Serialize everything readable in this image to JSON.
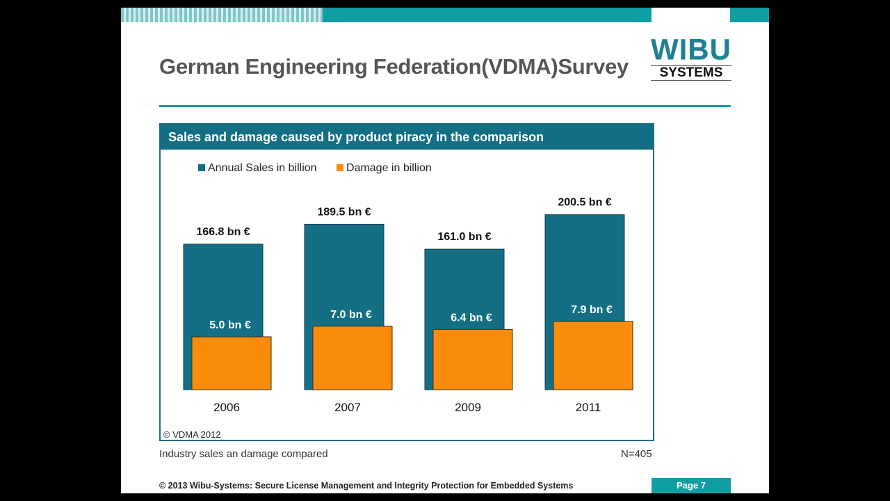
{
  "slide": {
    "title": "German Engineering Federation(VDMA)Survey",
    "logo_top": "WIBU",
    "logo_bottom": "SYSTEMS",
    "source_note": "Industry sales an damage compared",
    "n_label": "N=405",
    "footer": "© 2013 Wibu-Systems: Secure License Management and Integrity Protection for Embedded Systems",
    "page": "Page 7",
    "colors": {
      "teal": "#119ea3",
      "chart_blue": "#146f85",
      "orange": "#f98d0b"
    }
  },
  "chart_data": {
    "type": "bar",
    "title": "Sales and damage caused by product piracy in the comparison",
    "categories": [
      "2006",
      "2007",
      "2009",
      "2011"
    ],
    "series": [
      {
        "name": "Annual Sales in billion",
        "values": [
          166.8,
          189.5,
          161.0,
          200.5
        ],
        "labels": [
          "166.8 bn €",
          "189.5 bn €",
          "161.0 bn €",
          "200.5 bn €"
        ],
        "color": "#146f85"
      },
      {
        "name": "Damage in billion",
        "values": [
          5.0,
          7.0,
          6.4,
          7.9
        ],
        "labels": [
          "5.0 bn €",
          "7.0 bn €",
          "6.4 bn €",
          "7.9 bn €"
        ],
        "color": "#f98d0b"
      }
    ],
    "copyright": "© VDMA 2012"
  }
}
